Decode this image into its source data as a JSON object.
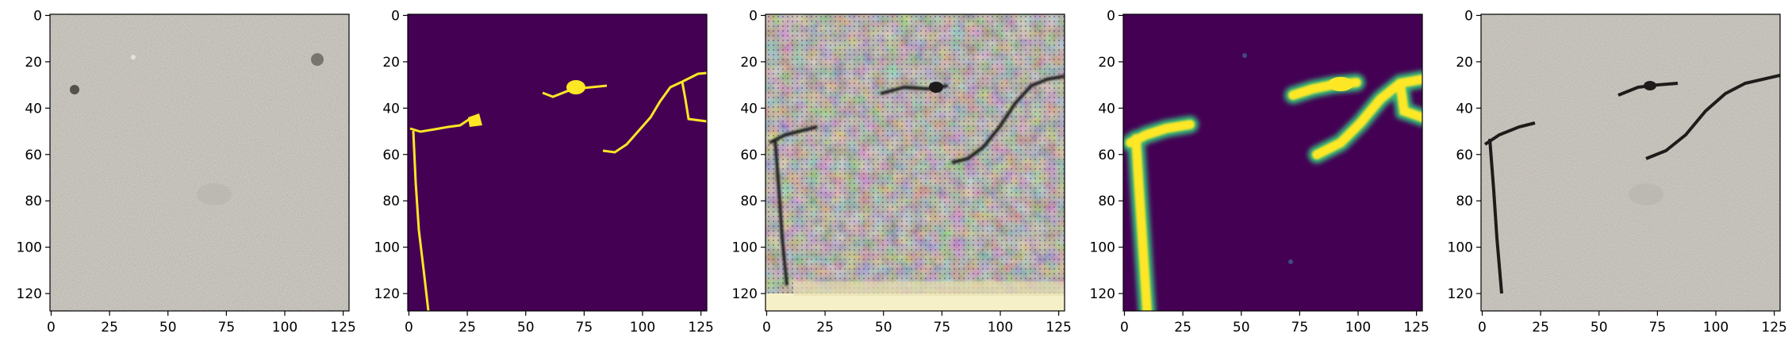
{
  "figure": {
    "panels": [
      {
        "name": "panel-1",
        "kind": "texture-photo"
      },
      {
        "name": "panel-2",
        "kind": "binary-mask"
      },
      {
        "name": "panel-3",
        "kind": "generated-image"
      },
      {
        "name": "panel-4",
        "kind": "heatmap-mask"
      },
      {
        "name": "panel-5",
        "kind": "composite-photo"
      }
    ]
  },
  "axes": {
    "x_ticks": [
      "0",
      "25",
      "50",
      "75",
      "100",
      "125"
    ],
    "y_ticks": [
      "0",
      "20",
      "40",
      "60",
      "80",
      "100",
      "120"
    ],
    "x_tick_values": [
      0,
      25,
      50,
      75,
      100,
      125
    ],
    "y_tick_values": [
      0,
      20,
      40,
      60,
      80,
      100,
      120
    ],
    "range": [
      0,
      128
    ]
  },
  "colors": {
    "mask_background": "#440154",
    "mask_foreground": "#fde725",
    "mask_edge": "#35b779",
    "concrete_base": "#8d8679",
    "crack_dark": "#1e1c1a"
  }
}
